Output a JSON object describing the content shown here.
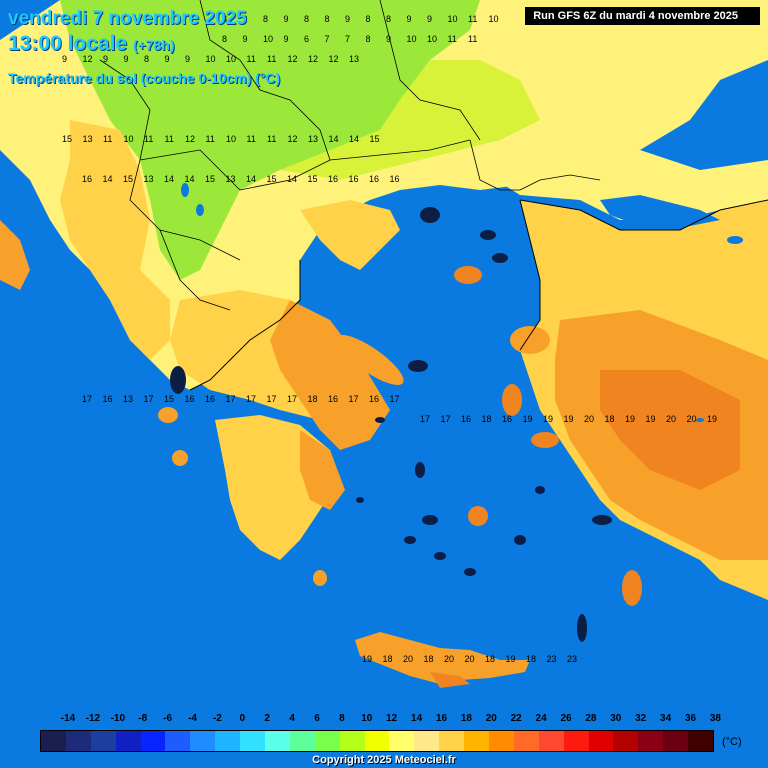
{
  "header": {
    "date": "vendredi 7 novembre 2025",
    "time": "13:00 locale",
    "lead": "(+78h)",
    "parameter": "Température du sol (couche 0-10cm) (°C)",
    "run": "Run GFS 6Z du mardi 4 novembre 2025"
  },
  "legend": {
    "labels": [
      "-14",
      "-12",
      "-10",
      "-8",
      "-6",
      "-4",
      "-2",
      "0",
      "2",
      "4",
      "6",
      "8",
      "10",
      "12",
      "14",
      "16",
      "18",
      "20",
      "22",
      "24",
      "26",
      "28",
      "30",
      "32",
      "34",
      "36",
      "38"
    ],
    "colors": [
      "#1b1f4f",
      "#1e2b7a",
      "#1c3ea0",
      "#1020c4",
      "#0a24ff",
      "#1e5cff",
      "#1f8cff",
      "#1fb4ff",
      "#32e0ff",
      "#5cffea",
      "#5cff9a",
      "#78ff4a",
      "#b4ff1a",
      "#f2ff00",
      "#ffff6a",
      "#ffe88a",
      "#ffd24a",
      "#ffb400",
      "#ff8c00",
      "#ff6a28",
      "#ff4830",
      "#ff1a10",
      "#e00000",
      "#b40000",
      "#8a0014",
      "#6a0010",
      "#400000"
    ],
    "unit": "(°C)"
  },
  "copyright": "Copyright 2025 Meteociel.fr",
  "colors": {
    "sea": "#0a7ae0",
    "land_green": "#9ce83a",
    "land_lime": "#d8f23a",
    "land_yellow": "#fff27a",
    "land_gold": "#ffd24a",
    "land_orange": "#f7a12a",
    "land_deep_orange": "#f08420",
    "island_dark": "#0d1e45",
    "border": "#000000"
  },
  "map": {
    "values": [
      [
        "vendredi area north",
        "8 9 8 9 8 8 9 8 8 9 9 10 11 10"
      ],
      [
        "row",
        "8 9 10 9 6 7 7 8 9 10 10 11 11"
      ],
      [
        "row",
        "9 12 9 9 8 9 9 10 10 11 11 12 12 12 13"
      ],
      [
        "row",
        "15 13 11 10 11 11 12 11 10 11 11 12 13 14 14 15"
      ],
      [
        "row",
        "16 14 15 13 14 14 15 13 14 15 14 15 16 16 16 16"
      ],
      [
        "row",
        "17 16 13 17 15 16 16 17 17 17 17 18 16 17 16 17"
      ],
      [
        "row",
        "17 17 16 18 16 19 19 19 20 18 19 19 20 20 19"
      ],
      [
        "crete",
        "19 18 20 18 20 20 18 19 18 23 23"
      ]
    ]
  }
}
